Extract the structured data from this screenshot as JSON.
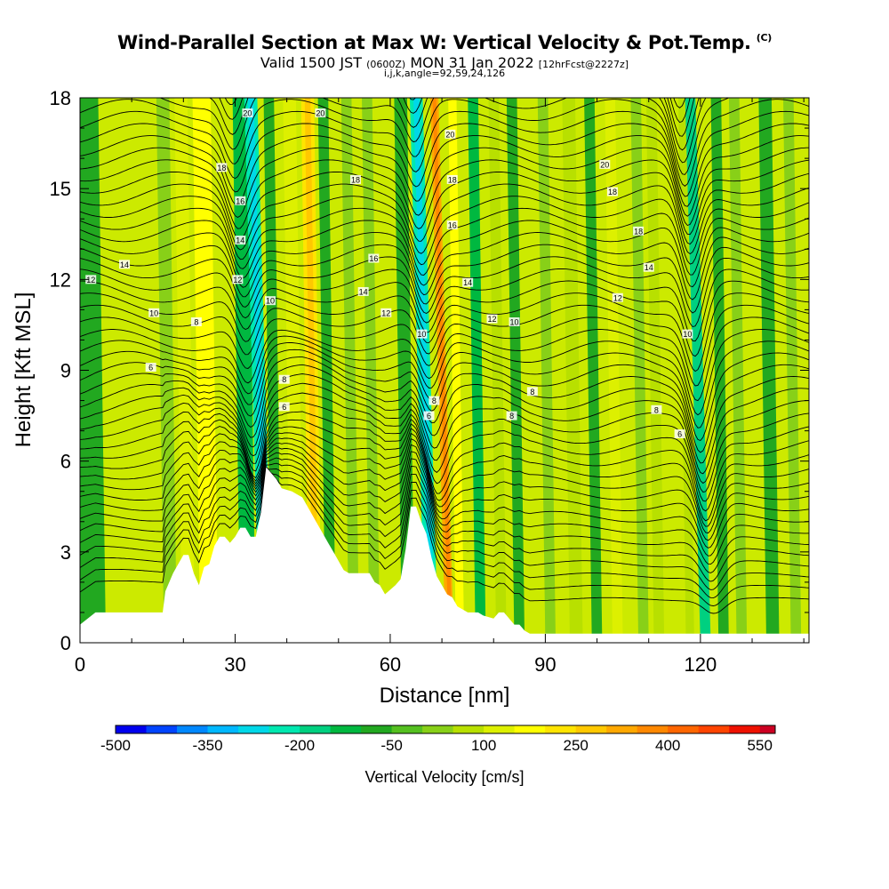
{
  "title": {
    "main": "Wind-Parallel Section at Max W: Vertical Velocity & Pot.Temp.",
    "copyright": "(C)",
    "valid_prefix": "Valid 1500 JST",
    "valid_utc": "(0600Z)",
    "valid_date": "MON 31 Jan 2022",
    "forecast": "[12hrFcst@2227z]",
    "indices": "i,j,k,angle=92,59,24,126"
  },
  "chart_data": {
    "type": "heatmap",
    "xlabel": "Distance [nm]",
    "ylabel": "Height [Kft MSL]",
    "xlim": [
      0,
      141
    ],
    "ylim": [
      0,
      18
    ],
    "x_ticks": [
      0,
      30,
      60,
      90,
      120
    ],
    "x_tick_labels": [
      "0",
      "30",
      "60",
      "90",
      "120"
    ],
    "x_minor_ticks": [
      10,
      20,
      40,
      50,
      70,
      80,
      100,
      110,
      130,
      140
    ],
    "y_ticks": [
      0,
      3,
      6,
      9,
      12,
      15,
      18
    ],
    "y_tick_labels": [
      "0",
      "3",
      "6",
      "9",
      "12",
      "15",
      "18"
    ],
    "colorbar": {
      "label": "Vertical Velocity [cm/s]",
      "labels": [
        "-500",
        "-350",
        "-200",
        "-50",
        "100",
        "250",
        "400",
        "550"
      ],
      "label_values": [
        -500,
        -350,
        -200,
        -50,
        100,
        250,
        400,
        550
      ],
      "min": -500,
      "max": 575,
      "bin_width": 50,
      "colors": [
        "#0000ee",
        "#0044ff",
        "#0088ff",
        "#00b8ff",
        "#00d8e8",
        "#00e8b0",
        "#00d080",
        "#00b840",
        "#22a820",
        "#55c020",
        "#88d018",
        "#b8e000",
        "#ddf000",
        "#ffff00",
        "#ffe400",
        "#ffc800",
        "#ffa800",
        "#ff8800",
        "#ff6600",
        "#ff4400",
        "#ee1100",
        "#cc0022",
        "#aa0044",
        "#880066",
        "#660088"
      ]
    },
    "velocity_bands": [
      {
        "x": 2.5,
        "w": 5,
        "v": -90
      },
      {
        "x": 17.5,
        "w": 2.5,
        "v": 30
      },
      {
        "x": 21,
        "w": 2.5,
        "v": 110
      },
      {
        "x": 25,
        "w": 3.5,
        "v": 180
      },
      {
        "x": 32.5,
        "w": 3,
        "v": -130
      },
      {
        "x": 36,
        "w": 2.5,
        "v": -230
      },
      {
        "x": 38,
        "w": 2,
        "v": -60
      },
      {
        "x": 42,
        "w": 2.5,
        "v": 110
      },
      {
        "x": 45.5,
        "w": 2.5,
        "v": 230
      },
      {
        "x": 48.5,
        "w": 2,
        "v": -100
      },
      {
        "x": 53,
        "w": 2,
        "v": 40
      },
      {
        "x": 57,
        "w": 2,
        "v": 30
      },
      {
        "x": 63.5,
        "w": 2.5,
        "v": -80
      },
      {
        "x": 68,
        "w": 2.5,
        "v": -230
      },
      {
        "x": 71.5,
        "w": 1.6,
        "v": 330
      },
      {
        "x": 73.5,
        "w": 1.6,
        "v": 170
      },
      {
        "x": 77.5,
        "w": 2,
        "v": -110
      },
      {
        "x": 81.5,
        "w": 2,
        "v": 90
      },
      {
        "x": 85,
        "w": 2,
        "v": -80
      },
      {
        "x": 91,
        "w": 2,
        "v": 30
      },
      {
        "x": 96,
        "w": 2.5,
        "v": 80
      },
      {
        "x": 100,
        "w": 2,
        "v": -80
      },
      {
        "x": 104,
        "w": 2,
        "v": 100
      },
      {
        "x": 109,
        "w": 2,
        "v": 40
      },
      {
        "x": 112,
        "w": 2,
        "v": 70
      },
      {
        "x": 118,
        "w": 1.6,
        "v": 90
      },
      {
        "x": 121,
        "w": 2,
        "v": -180
      },
      {
        "x": 124.5,
        "w": 2,
        "v": -60
      },
      {
        "x": 128,
        "w": 2,
        "v": 30
      },
      {
        "x": 134,
        "w": 2.5,
        "v": -90
      },
      {
        "x": 138.5,
        "w": 2,
        "v": 40
      }
    ],
    "terrain_kft": {
      "x": [
        0,
        3,
        16,
        16.5,
        18,
        20,
        21,
        22,
        23,
        24,
        25,
        26,
        27,
        28,
        29,
        30,
        31,
        32,
        33,
        34,
        35,
        36,
        38,
        39,
        41,
        43,
        44,
        45,
        46,
        47,
        48,
        49,
        50,
        51,
        52,
        53,
        54,
        55,
        56,
        57,
        58,
        59,
        61,
        62,
        63,
        64,
        65,
        66,
        67,
        68,
        69,
        70,
        71,
        72,
        73,
        75,
        77,
        78,
        80,
        81,
        82,
        83,
        84,
        85,
        86,
        87,
        88,
        89,
        100,
        110,
        120,
        121,
        141
      ],
      "y": [
        0.6,
        1.0,
        1.0,
        1.7,
        2.3,
        2.9,
        2.9,
        2.3,
        1.9,
        2.5,
        2.6,
        3.2,
        3.5,
        3.5,
        3.3,
        3.5,
        3.8,
        3.8,
        3.5,
        3.5,
        4.3,
        5.8,
        5.4,
        5.1,
        5.0,
        4.8,
        4.5,
        4.2,
        3.9,
        3.6,
        3.3,
        3.0,
        2.7,
        2.4,
        2.3,
        2.3,
        2.3,
        2.3,
        2.3,
        2.0,
        1.9,
        1.6,
        1.9,
        2.1,
        3.1,
        4.5,
        4.5,
        4.0,
        3.6,
        2.8,
        2.2,
        1.9,
        1.6,
        1.5,
        1.2,
        1.0,
        1.0,
        0.9,
        0.8,
        1.0,
        1.0,
        0.8,
        0.6,
        0.6,
        0.4,
        0.3,
        0.3,
        0.3,
        0.3,
        0.3,
        0.3,
        0.3,
        0.3
      ]
    },
    "contour_labels": [
      {
        "x": 32.4,
        "y": 17.5,
        "t": "20"
      },
      {
        "x": 46.5,
        "y": 17.5,
        "t": "20"
      },
      {
        "x": 71.6,
        "y": 16.8,
        "t": "20"
      },
      {
        "x": 101.5,
        "y": 15.8,
        "t": "20"
      },
      {
        "x": 27.4,
        "y": 15.7,
        "t": "18"
      },
      {
        "x": 53.3,
        "y": 15.3,
        "t": "18"
      },
      {
        "x": 72.0,
        "y": 15.3,
        "t": "18"
      },
      {
        "x": 103.0,
        "y": 14.9,
        "t": "18"
      },
      {
        "x": 108.0,
        "y": 13.6,
        "t": "18"
      },
      {
        "x": 31.0,
        "y": 14.6,
        "t": "16"
      },
      {
        "x": 72.0,
        "y": 13.8,
        "t": "16"
      },
      {
        "x": 56.8,
        "y": 12.7,
        "t": "16"
      },
      {
        "x": 31.0,
        "y": 13.3,
        "t": "14"
      },
      {
        "x": 8.6,
        "y": 12.5,
        "t": "14"
      },
      {
        "x": 110.0,
        "y": 12.4,
        "t": "14"
      },
      {
        "x": 54.8,
        "y": 11.6,
        "t": "14"
      },
      {
        "x": 75.0,
        "y": 11.9,
        "t": "14"
      },
      {
        "x": 2.1,
        "y": 12.0,
        "t": "12"
      },
      {
        "x": 30.5,
        "y": 12.0,
        "t": "12"
      },
      {
        "x": 59.2,
        "y": 10.9,
        "t": "12"
      },
      {
        "x": 79.7,
        "y": 10.7,
        "t": "12"
      },
      {
        "x": 104.0,
        "y": 11.4,
        "t": "12"
      },
      {
        "x": 14.3,
        "y": 10.9,
        "t": "10"
      },
      {
        "x": 36.8,
        "y": 11.3,
        "t": "10"
      },
      {
        "x": 66.1,
        "y": 10.2,
        "t": "10"
      },
      {
        "x": 84.0,
        "y": 10.6,
        "t": "10"
      },
      {
        "x": 117.5,
        "y": 10.2,
        "t": "10"
      },
      {
        "x": 22.5,
        "y": 10.6,
        "t": "8"
      },
      {
        "x": 39.5,
        "y": 8.7,
        "t": "8"
      },
      {
        "x": 68.5,
        "y": 8.0,
        "t": "8"
      },
      {
        "x": 83.5,
        "y": 7.5,
        "t": "8"
      },
      {
        "x": 87.5,
        "y": 8.3,
        "t": "8"
      },
      {
        "x": 111.5,
        "y": 7.7,
        "t": "8"
      },
      {
        "x": 13.7,
        "y": 9.1,
        "t": "6"
      },
      {
        "x": 39.5,
        "y": 7.8,
        "t": "6"
      },
      {
        "x": 67.5,
        "y": 7.5,
        "t": "6"
      },
      {
        "x": 116.0,
        "y": 6.9,
        "t": "6"
      }
    ]
  }
}
